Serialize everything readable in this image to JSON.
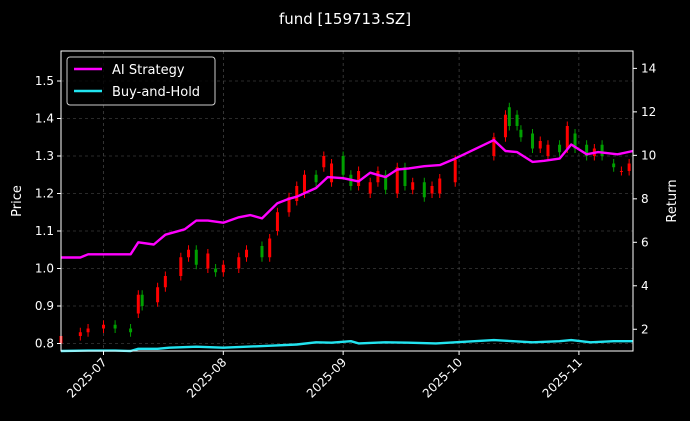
{
  "chart_data": {
    "type": "line",
    "title": "fund [159713.SZ]",
    "ylabel_left": "Price",
    "ylabel_right": "Return",
    "xlim": [
      "2025-06-20",
      "2025-11-15"
    ],
    "ylim_left": [
      0.78,
      1.58
    ],
    "ylim_right": [
      1.0,
      14.8
    ],
    "x_ticks": [
      "2025-07",
      "2025-08",
      "2025-09",
      "2025-10",
      "2025-11"
    ],
    "y_ticks_left": [
      "0.8",
      "0.9",
      "1.0",
      "1.1",
      "1.2",
      "1.3",
      "1.4",
      "1.5"
    ],
    "y_ticks_right": [
      "2",
      "4",
      "6",
      "8",
      "10",
      "12",
      "14"
    ],
    "grid": true,
    "legend_position": "top-left",
    "colors": {
      "ai_strategy": "#ff00ff",
      "buy_and_hold": "#22e4f0",
      "up": "#ff0000",
      "down": "#00a000",
      "grid": "#555555",
      "axis": "#ffffff"
    },
    "series": [
      {
        "name": "AI Strategy",
        "axis": "right",
        "x": [
          "2025-06-20",
          "2025-06-25",
          "2025-06-27",
          "2025-07-01",
          "2025-07-08",
          "2025-07-10",
          "2025-07-14",
          "2025-07-17",
          "2025-07-22",
          "2025-07-25",
          "2025-07-28",
          "2025-08-01",
          "2025-08-05",
          "2025-08-08",
          "2025-08-11",
          "2025-08-15",
          "2025-08-18",
          "2025-08-20",
          "2025-08-25",
          "2025-08-28",
          "2025-09-01",
          "2025-09-05",
          "2025-09-08",
          "2025-09-12",
          "2025-09-15",
          "2025-09-18",
          "2025-09-22",
          "2025-09-26",
          "2025-09-30",
          "2025-10-10",
          "2025-10-13",
          "2025-10-16",
          "2025-10-20",
          "2025-10-23",
          "2025-10-27",
          "2025-10-30",
          "2025-11-03",
          "2025-11-06",
          "2025-11-11",
          "2025-11-15"
        ],
        "values": [
          5.3,
          5.3,
          5.45,
          5.45,
          5.45,
          6.0,
          5.9,
          6.35,
          6.6,
          7.0,
          7.0,
          6.9,
          7.15,
          7.25,
          7.1,
          7.8,
          8.0,
          8.1,
          8.5,
          9.0,
          8.95,
          8.8,
          9.2,
          9.0,
          9.35,
          9.4,
          9.5,
          9.55,
          9.85,
          10.7,
          10.2,
          10.15,
          9.7,
          9.75,
          9.85,
          10.5,
          10.05,
          10.15,
          10.05,
          10.2
        ]
      },
      {
        "name": "Buy-and-Hold",
        "axis": "right",
        "x": [
          "2025-06-20",
          "2025-06-27",
          "2025-07-04",
          "2025-07-08",
          "2025-07-10",
          "2025-07-15",
          "2025-07-18",
          "2025-07-25",
          "2025-08-01",
          "2025-08-07",
          "2025-08-14",
          "2025-08-20",
          "2025-08-25",
          "2025-08-29",
          "2025-09-03",
          "2025-09-05",
          "2025-09-12",
          "2025-09-18",
          "2025-09-25",
          "2025-09-30",
          "2025-10-10",
          "2025-10-15",
          "2025-10-20",
          "2025-10-27",
          "2025-10-30",
          "2025-11-04",
          "2025-11-10",
          "2025-11-15"
        ],
        "values": [
          1.0,
          1.02,
          1.02,
          1.0,
          1.1,
          1.1,
          1.15,
          1.2,
          1.15,
          1.2,
          1.25,
          1.3,
          1.4,
          1.38,
          1.45,
          1.35,
          1.4,
          1.38,
          1.35,
          1.4,
          1.5,
          1.45,
          1.4,
          1.45,
          1.5,
          1.4,
          1.45,
          1.45
        ]
      }
    ],
    "candles": {
      "axis": "left",
      "x": [
        "2025-06-20",
        "2025-06-25",
        "2025-06-27",
        "2025-07-01",
        "2025-07-04",
        "2025-07-08",
        "2025-07-10",
        "2025-07-11",
        "2025-07-15",
        "2025-07-17",
        "2025-07-21",
        "2025-07-23",
        "2025-07-25",
        "2025-07-28",
        "2025-07-30",
        "2025-08-01",
        "2025-08-05",
        "2025-08-07",
        "2025-08-11",
        "2025-08-13",
        "2025-08-15",
        "2025-08-18",
        "2025-08-20",
        "2025-08-22",
        "2025-08-25",
        "2025-08-27",
        "2025-08-29",
        "2025-09-01",
        "2025-09-03",
        "2025-09-05",
        "2025-09-08",
        "2025-09-10",
        "2025-09-12",
        "2025-09-15",
        "2025-09-17",
        "2025-09-19",
        "2025-09-22",
        "2025-09-24",
        "2025-09-26",
        "2025-09-30",
        "2025-10-10",
        "2025-10-13",
        "2025-10-14",
        "2025-10-16",
        "2025-10-17",
        "2025-10-20",
        "2025-10-22",
        "2025-10-24",
        "2025-10-27",
        "2025-10-29",
        "2025-10-31",
        "2025-11-03",
        "2025-11-05",
        "2025-11-07",
        "2025-11-10",
        "2025-11-12",
        "2025-11-14"
      ],
      "open": [
        0.8,
        0.82,
        0.83,
        0.84,
        0.85,
        0.84,
        0.88,
        0.93,
        0.91,
        0.95,
        0.98,
        1.03,
        1.05,
        1.0,
        1.0,
        0.99,
        1.0,
        1.03,
        1.06,
        1.03,
        1.1,
        1.15,
        1.18,
        1.2,
        1.25,
        1.27,
        1.23,
        1.3,
        1.25,
        1.22,
        1.2,
        1.23,
        1.25,
        1.2,
        1.27,
        1.21,
        1.23,
        1.2,
        1.2,
        1.23,
        1.3,
        1.35,
        1.43,
        1.41,
        1.37,
        1.36,
        1.32,
        1.3,
        1.33,
        1.32,
        1.36,
        1.33,
        1.3,
        1.33,
        1.28,
        1.26,
        1.26
      ],
      "close": [
        0.82,
        0.83,
        0.84,
        0.85,
        0.84,
        0.83,
        0.93,
        0.9,
        0.95,
        0.98,
        1.03,
        1.05,
        1.01,
        1.04,
        0.99,
        1.01,
        1.03,
        1.05,
        1.03,
        1.08,
        1.15,
        1.19,
        1.22,
        1.25,
        1.23,
        1.3,
        1.28,
        1.25,
        1.22,
        1.26,
        1.23,
        1.26,
        1.21,
        1.27,
        1.22,
        1.23,
        1.19,
        1.22,
        1.24,
        1.29,
        1.35,
        1.41,
        1.38,
        1.38,
        1.35,
        1.32,
        1.34,
        1.33,
        1.31,
        1.38,
        1.32,
        1.3,
        1.32,
        1.3,
        1.27,
        1.26,
        1.28
      ]
    }
  }
}
